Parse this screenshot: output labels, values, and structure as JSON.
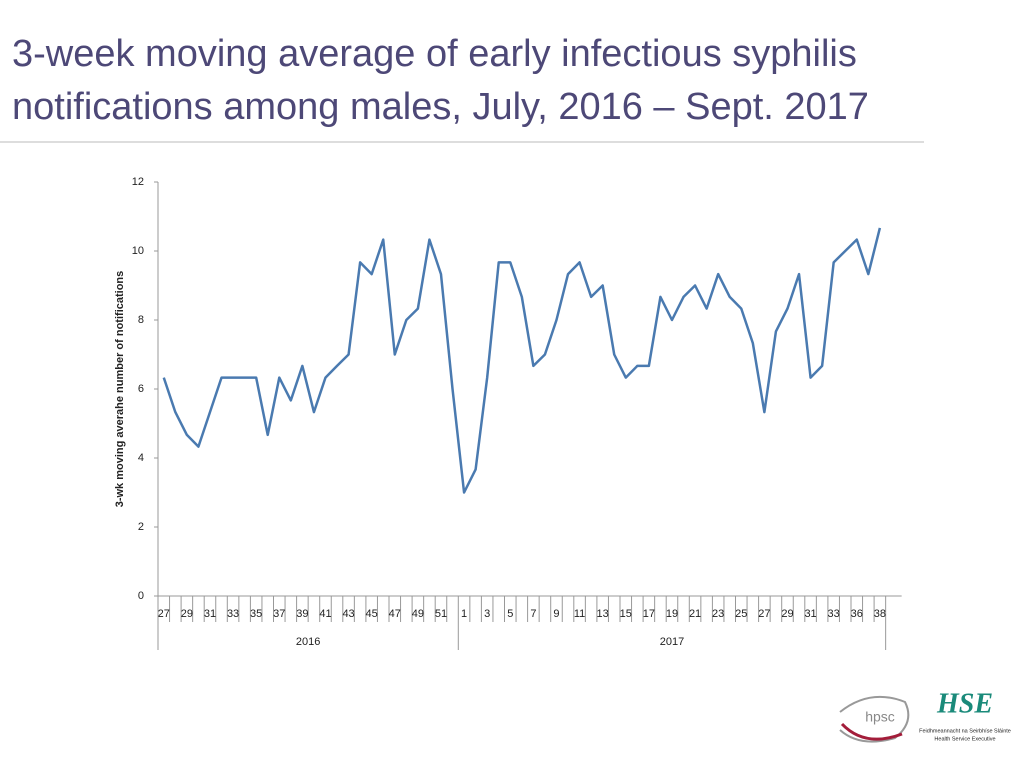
{
  "chart_data": {
    "type": "line",
    "title": "3-week moving average of early infectious syphilis notifications among males, July, 2016 – Sept. 2017",
    "y_label": "3-wk moving averahe number of notifications",
    "categories": [
      "27",
      null,
      "29",
      null,
      "31",
      null,
      "33",
      null,
      "35",
      null,
      "37",
      null,
      "39",
      null,
      "41",
      null,
      "43",
      null,
      "45",
      null,
      "47",
      null,
      "49",
      null,
      "51",
      null,
      "1",
      null,
      "3",
      null,
      "5",
      null,
      "7",
      null,
      "9",
      null,
      "11",
      null,
      "13",
      null,
      "15",
      null,
      "17",
      null,
      "19",
      null,
      "21",
      null,
      "23",
      null,
      "25",
      null,
      "27",
      null,
      "29",
      null,
      "31",
      null,
      "33",
      null,
      "36",
      null,
      "38"
    ],
    "groups": [
      {
        "label": "2016",
        "span": 26
      },
      {
        "label": "2017",
        "span": 37
      }
    ],
    "series": [
      {
        "name": "3-wk moving average",
        "color": "#4a7ab0",
        "values": [
          6.33,
          5.33,
          4.67,
          4.33,
          5.33,
          6.33,
          6.33,
          6.33,
          6.33,
          4.67,
          6.33,
          5.67,
          6.67,
          5.33,
          6.33,
          6.67,
          7,
          9.67,
          9.33,
          10.33,
          7,
          8,
          8.33,
          10.33,
          9.33,
          6,
          3,
          3.67,
          6.33,
          9.67,
          9.67,
          8.67,
          6.67,
          7,
          8,
          9.33,
          9.67,
          8.67,
          9,
          7,
          6.33,
          6.67,
          6.67,
          8.67,
          8,
          8.67,
          9,
          8.33,
          9.33,
          8.67,
          8.33,
          7.33,
          5.33,
          7.67,
          8.33,
          9.33,
          6.33,
          6.67,
          9.67,
          10,
          10.33,
          9.33,
          10.67
        ]
      }
    ],
    "ylim": [
      0,
      12
    ],
    "yticks": [
      0,
      2,
      4,
      6,
      8,
      10,
      12
    ]
  },
  "logos": {
    "left": "hpsc",
    "right_line1": "Feidhmeannacht na Seirbhíse Sláinte",
    "right_line2": "Health Service Executive"
  }
}
